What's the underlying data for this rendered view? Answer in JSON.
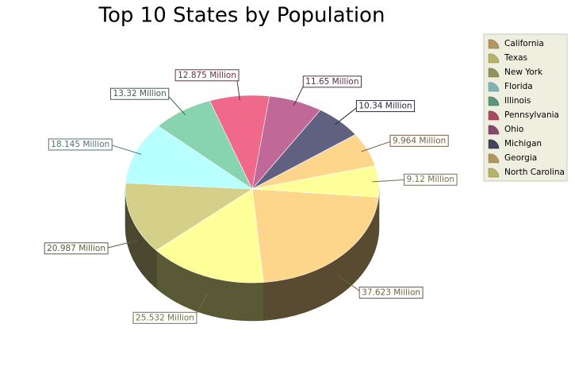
{
  "chart_data": {
    "type": "pie3d",
    "title": "Top 10 States by Population",
    "categories": [
      "California",
      "Texas",
      "New York",
      "Florida",
      "Illinois",
      "Pennsylvania",
      "Ohio",
      "Michigan",
      "Georgia",
      "North Carolina"
    ],
    "values": [
      37.623,
      25.532,
      20.987,
      18.145,
      13.32,
      12.875,
      11.65,
      10.34,
      9.964,
      9.12
    ],
    "value_labels": [
      "37.623 Million",
      "25.532 Million",
      "20.987 Million",
      "18.145 Million",
      "13.32 Million",
      "12.875 Million",
      "11.65 Million",
      "10.34 Million",
      "9.964 Million",
      "9.12 Million"
    ],
    "colors": [
      "#fdd68c",
      "#ffff99",
      "#d4d08a",
      "#b8ffff",
      "#88d4b0",
      "#f0688a",
      "#c06898",
      "#606080",
      "#fdd68c",
      "#ffff99"
    ],
    "legend": "right"
  }
}
